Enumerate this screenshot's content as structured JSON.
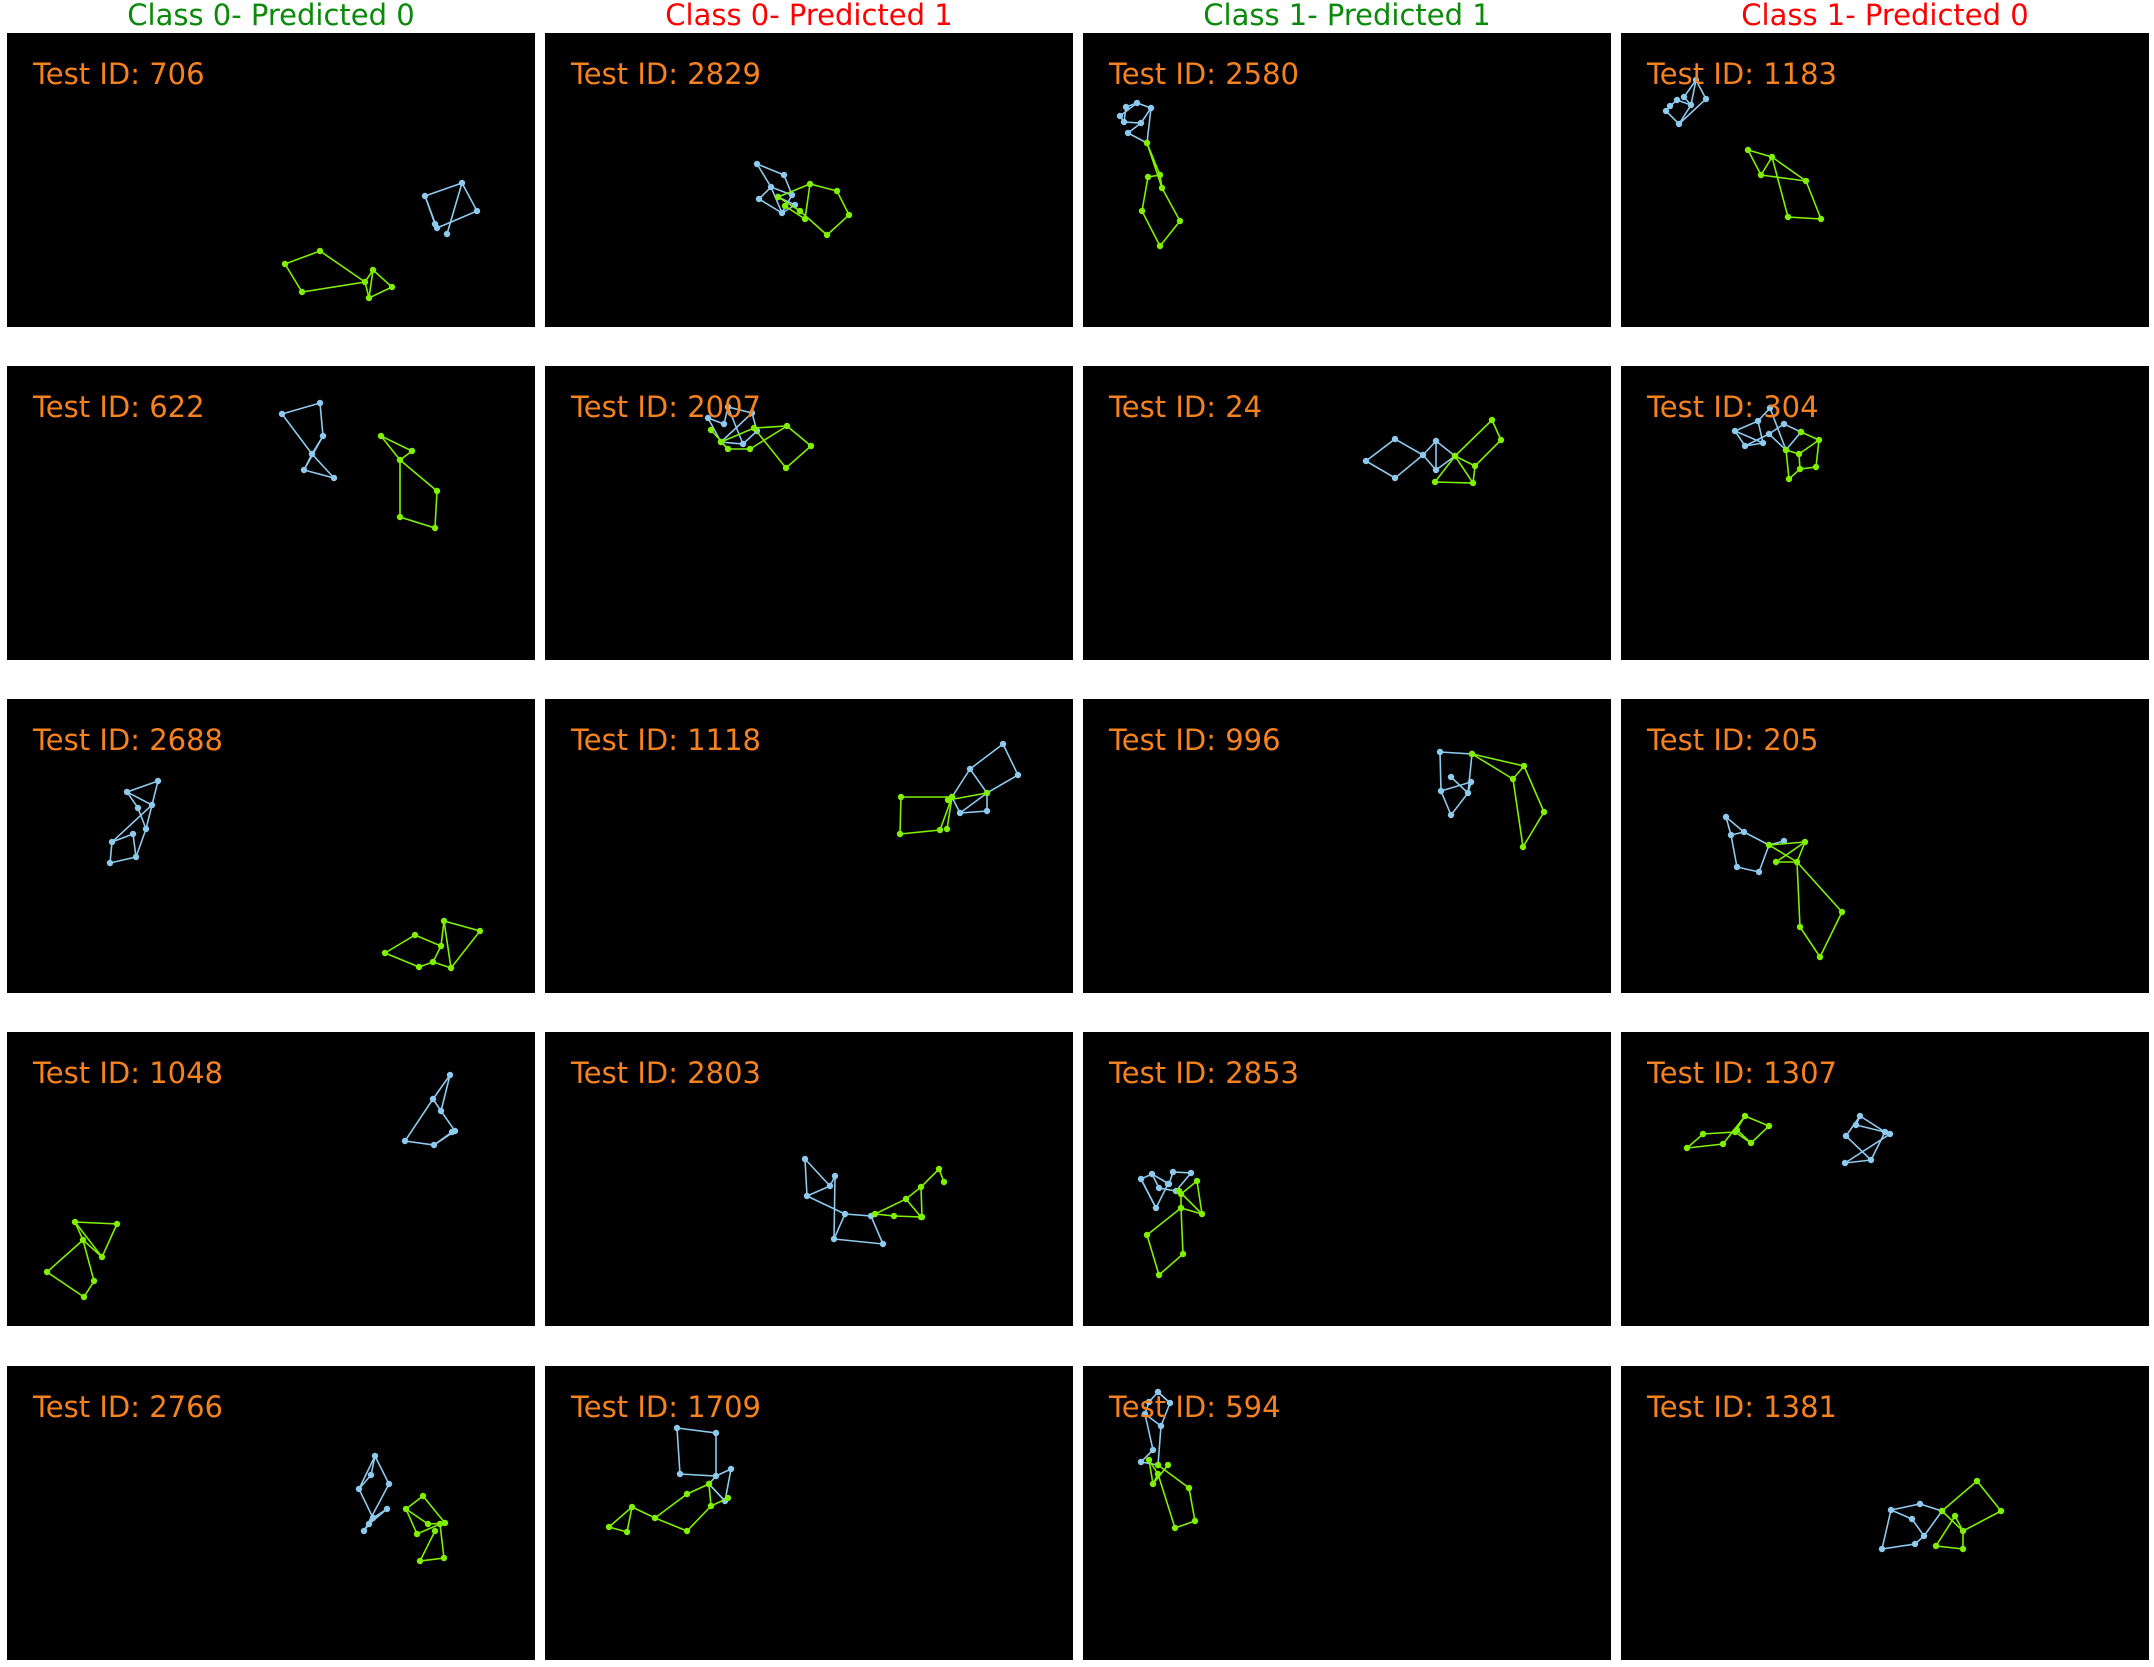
{
  "colors": {
    "background": "#000000",
    "id_label": "#f5821f",
    "correct": "#0a8a0a",
    "incorrect": "#ff0000",
    "blue_graph": "#8ec9ee",
    "green_graph": "#80f000"
  },
  "columns": [
    {
      "title": "Class 0- Predicted 0",
      "status": "correct"
    },
    {
      "title": "Class 0- Predicted 1",
      "status": "incorrect"
    },
    {
      "title": "Class 1- Predicted 1",
      "status": "correct"
    },
    {
      "title": "Class 1- Predicted 0",
      "status": "incorrect"
    }
  ],
  "id_prefix": "Test ID: ",
  "panels": [
    {
      "row": 0,
      "col": 0,
      "test_id": "706"
    },
    {
      "row": 0,
      "col": 1,
      "test_id": "2829"
    },
    {
      "row": 0,
      "col": 2,
      "test_id": "2580"
    },
    {
      "row": 0,
      "col": 3,
      "test_id": "1183"
    },
    {
      "row": 1,
      "col": 0,
      "test_id": "622"
    },
    {
      "row": 1,
      "col": 1,
      "test_id": "2007"
    },
    {
      "row": 1,
      "col": 2,
      "test_id": "24"
    },
    {
      "row": 1,
      "col": 3,
      "test_id": "304"
    },
    {
      "row": 2,
      "col": 0,
      "test_id": "2688"
    },
    {
      "row": 2,
      "col": 1,
      "test_id": "1118"
    },
    {
      "row": 2,
      "col": 2,
      "test_id": "996"
    },
    {
      "row": 2,
      "col": 3,
      "test_id": "205"
    },
    {
      "row": 3,
      "col": 0,
      "test_id": "1048"
    },
    {
      "row": 3,
      "col": 1,
      "test_id": "2803"
    },
    {
      "row": 3,
      "col": 2,
      "test_id": "2853"
    },
    {
      "row": 3,
      "col": 3,
      "test_id": "1307"
    },
    {
      "row": 4,
      "col": 0,
      "test_id": "2766"
    },
    {
      "row": 4,
      "col": 1,
      "test_id": "1709"
    },
    {
      "row": 4,
      "col": 2,
      "test_id": "594"
    },
    {
      "row": 4,
      "col": 3,
      "test_id": "1381"
    }
  ]
}
